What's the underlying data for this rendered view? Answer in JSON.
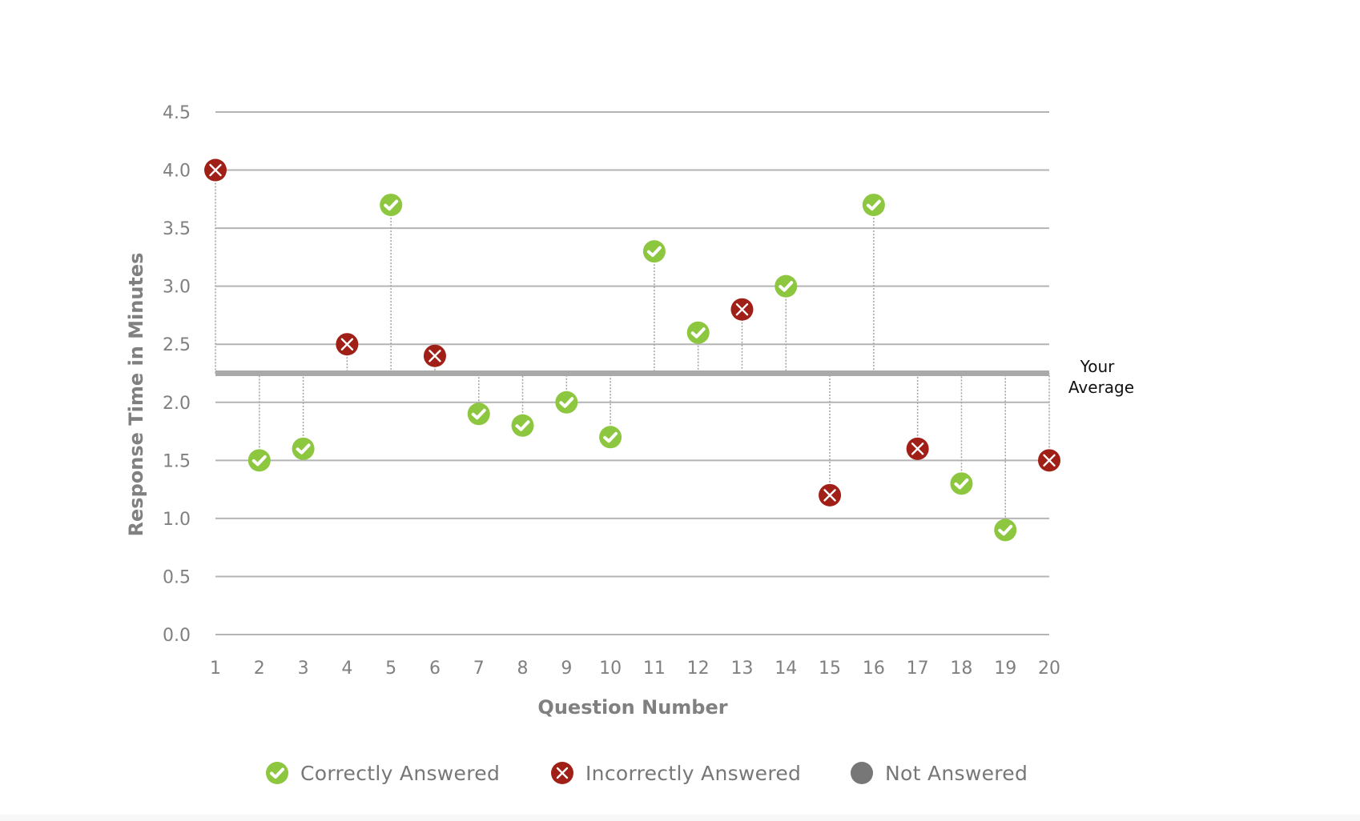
{
  "chart_data": {
    "type": "scatter",
    "title": "",
    "xlabel": "Question Number",
    "ylabel": "Response Time in Minutes",
    "ylim": [
      0,
      4.5
    ],
    "y_ticks": [
      "0.0",
      "0.5",
      "1.0",
      "1.5",
      "2.0",
      "2.5",
      "3.0",
      "3.5",
      "4.0",
      "4.5"
    ],
    "x_ticks": [
      "1",
      "2",
      "3",
      "4",
      "5",
      "6",
      "7",
      "8",
      "9",
      "10",
      "11",
      "12",
      "13",
      "14",
      "15",
      "16",
      "17",
      "18",
      "19",
      "20"
    ],
    "grid": true,
    "average": {
      "value": 2.25,
      "label_line1": "Your",
      "label_line2": "Average"
    },
    "points": [
      {
        "question": 1,
        "time": 4.0,
        "status": "incorrect"
      },
      {
        "question": 2,
        "time": 1.5,
        "status": "correct"
      },
      {
        "question": 3,
        "time": 1.6,
        "status": "correct"
      },
      {
        "question": 4,
        "time": 2.5,
        "status": "incorrect"
      },
      {
        "question": 5,
        "time": 3.7,
        "status": "correct"
      },
      {
        "question": 6,
        "time": 2.4,
        "status": "incorrect"
      },
      {
        "question": 7,
        "time": 1.9,
        "status": "correct"
      },
      {
        "question": 8,
        "time": 1.8,
        "status": "correct"
      },
      {
        "question": 9,
        "time": 2.0,
        "status": "correct"
      },
      {
        "question": 10,
        "time": 1.7,
        "status": "correct"
      },
      {
        "question": 11,
        "time": 3.3,
        "status": "correct"
      },
      {
        "question": 12,
        "time": 2.6,
        "status": "correct"
      },
      {
        "question": 13,
        "time": 2.8,
        "status": "incorrect"
      },
      {
        "question": 14,
        "time": 3.0,
        "status": "correct"
      },
      {
        "question": 15,
        "time": 1.2,
        "status": "incorrect"
      },
      {
        "question": 16,
        "time": 3.7,
        "status": "correct"
      },
      {
        "question": 17,
        "time": 1.6,
        "status": "incorrect"
      },
      {
        "question": 18,
        "time": 1.3,
        "status": "correct"
      },
      {
        "question": 19,
        "time": 0.9,
        "status": "correct"
      },
      {
        "question": 20,
        "time": 1.5,
        "status": "incorrect"
      }
    ],
    "legend": [
      {
        "key": "correct",
        "label": "Correctly Answered",
        "color": "#8dc63f",
        "icon": "check-circle-icon"
      },
      {
        "key": "incorrect",
        "label": "Incorrectly Answered",
        "color": "#a01f16",
        "icon": "x-circle-icon"
      },
      {
        "key": "unanswered",
        "label": "Not Answered",
        "color": "#777777",
        "icon": "gray-dot-icon"
      }
    ],
    "legend_placement": "bottom"
  },
  "colors": {
    "grid": "#b4b4b4",
    "average_line": "#a9a9a9",
    "stem": "#a0a0a0",
    "correct": "#8dc63f",
    "incorrect": "#a01f16",
    "unanswered": "#777777"
  }
}
